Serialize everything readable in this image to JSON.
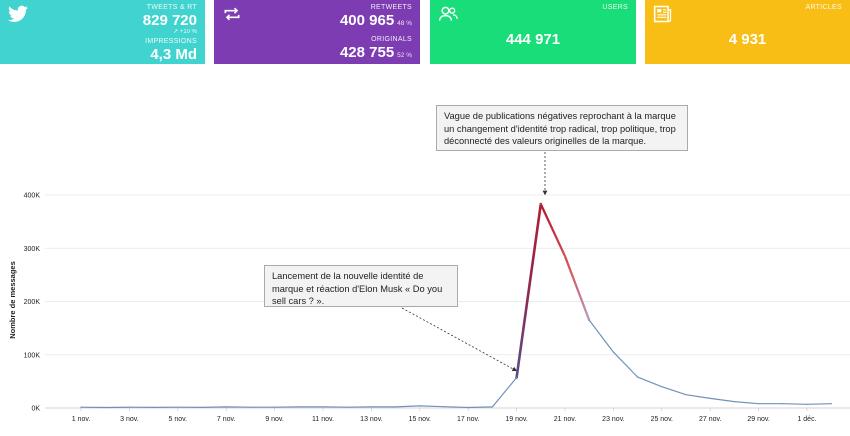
{
  "cards": {
    "tweets": {
      "label": "TWEETS & RT",
      "value": "829 720",
      "trend": "↗ +10 %",
      "sub_label": "IMPRESSIONS",
      "sub_value": "4,3 Md",
      "icon": "twitter-bird-icon",
      "color": "#41d3cf"
    },
    "retweets": {
      "label": "RETWEETS",
      "value": "400 965",
      "value_pct": "48 %",
      "sub_label": "ORIGINALS",
      "sub_value": "428 755",
      "sub_pct": "52 %",
      "icon": "retweet-icon",
      "color": "#7d3cb2"
    },
    "users": {
      "label": "USERS",
      "value": "444 971",
      "icon": "users-icon",
      "color": "#19dd79"
    },
    "articles": {
      "label": "ARTICLES",
      "value": "4 931",
      "icon": "newspaper-icon",
      "color": "#f9be16"
    }
  },
  "annotations": {
    "peak": "Vague de publications négatives reprochant à la marque un changement d'identité trop radical, trop politique, trop déconnecté des valeurs originelles de la marque.",
    "launch": "Lancement de la nouvelle identité de marque et réaction d'Elon Musk « Do you sell cars ? »."
  },
  "chart_data": {
    "type": "line",
    "ylabel": "Nombre de messages",
    "ytick_labels": [
      "0K",
      "100K",
      "200K",
      "300K",
      "400K"
    ],
    "ylim": [
      0,
      400000
    ],
    "xtick_labels": [
      "1 nov.",
      "3 nov.",
      "5 nov.",
      "7 nov.",
      "9 nov.",
      "11 nov.",
      "13 nov.",
      "15 nov.",
      "17 nov.",
      "19 nov.",
      "21 nov.",
      "23 nov.",
      "25 nov.",
      "27 nov.",
      "29 nov.",
      "1 déc."
    ],
    "series": [
      {
        "x": [
          "1 nov.",
          "2 nov.",
          "3 nov.",
          "4 nov.",
          "5 nov.",
          "6 nov.",
          "7 nov.",
          "8 nov.",
          "9 nov.",
          "10 nov.",
          "11 nov.",
          "12 nov.",
          "13 nov.",
          "14 nov.",
          "15 nov.",
          "16 nov.",
          "17 nov.",
          "18 nov.",
          "19 nov.",
          "20 nov.",
          "21 nov.",
          "22 nov.",
          "23 nov.",
          "24 nov.",
          "25 nov.",
          "26 nov.",
          "27 nov.",
          "28 nov.",
          "29 nov.",
          "30 nov.",
          "1 déc.",
          "2 déc."
        ],
        "values": [
          1500,
          1000,
          1500,
          1200,
          1500,
          1200,
          2000,
          1500,
          1500,
          2000,
          2000,
          1500,
          2000,
          2000,
          4000,
          2500,
          1000,
          2000,
          57000,
          383000,
          285000,
          165000,
          105000,
          58000,
          40000,
          25000,
          18000,
          12000,
          8000,
          8000,
          7000,
          8000
        ]
      }
    ],
    "line_colors": {
      "base": "#6f93b8",
      "peak": "#b51c34",
      "mid": "#d9565a",
      "descent": "#a8acd8"
    },
    "grid": true
  }
}
